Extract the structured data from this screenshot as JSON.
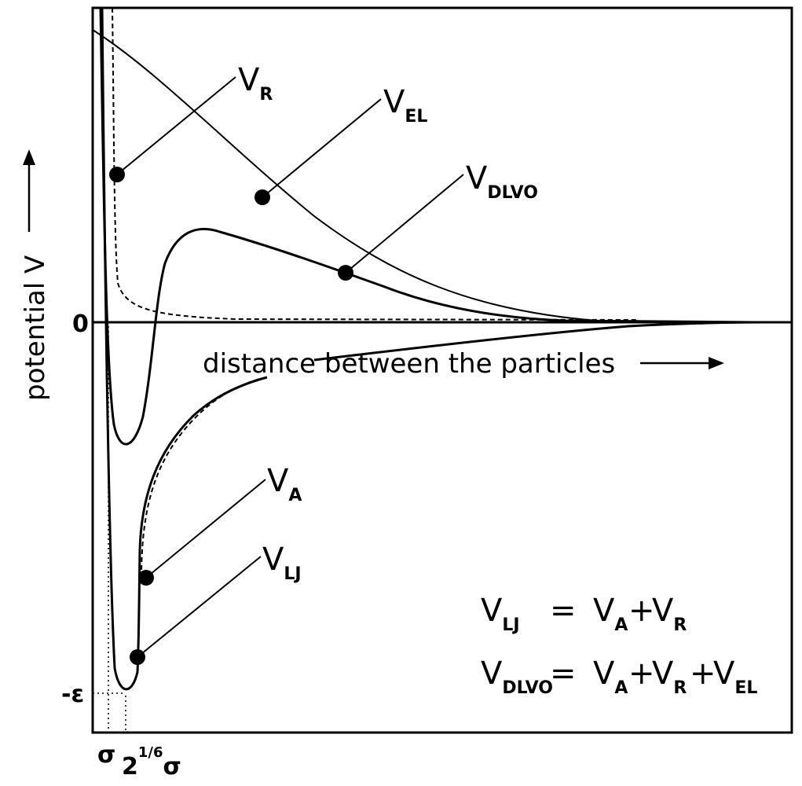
{
  "axes": {
    "ylabel": "potential V",
    "xlabel": "distance between the particles",
    "zero_label": "0",
    "min_label": "-ε",
    "sigma_label": "σ",
    "rmin_base": "2",
    "rmin_exp": "1/6",
    "rmin_sigma": "σ"
  },
  "curves": [
    {
      "name": "V_R",
      "style": "dashed"
    },
    {
      "name": "V_EL",
      "style": "solid-thin"
    },
    {
      "name": "V_DLVO",
      "style": "solid-thick"
    },
    {
      "name": "V_A",
      "style": "dashed"
    },
    {
      "name": "V_LJ",
      "style": "solid-thick"
    }
  ],
  "labels": {
    "vr": {
      "base": "V",
      "sub": "R"
    },
    "vel": {
      "base": "V",
      "sub": "EL"
    },
    "vdlvo": {
      "base": "V",
      "sub": "DLVO"
    },
    "va": {
      "base": "V",
      "sub": "A"
    },
    "vlj": {
      "base": "V",
      "sub": "LJ"
    }
  },
  "equations": {
    "eq1": {
      "lhs_base": "V",
      "lhs_sub": "LJ",
      "eq": "=",
      "t1_base": "V",
      "t1_sub": "A",
      "plus1": "+",
      "t2_base": "V",
      "t2_sub": "R"
    },
    "eq2": {
      "lhs_base": "V",
      "lhs_sub": "DLVO",
      "eq": "=",
      "t1_base": "V",
      "t1_sub": "A",
      "plus1": "+",
      "t2_base": "V",
      "t2_sub": "R",
      "plus2": "+",
      "t3_base": "V",
      "t3_sub": "EL"
    }
  }
}
